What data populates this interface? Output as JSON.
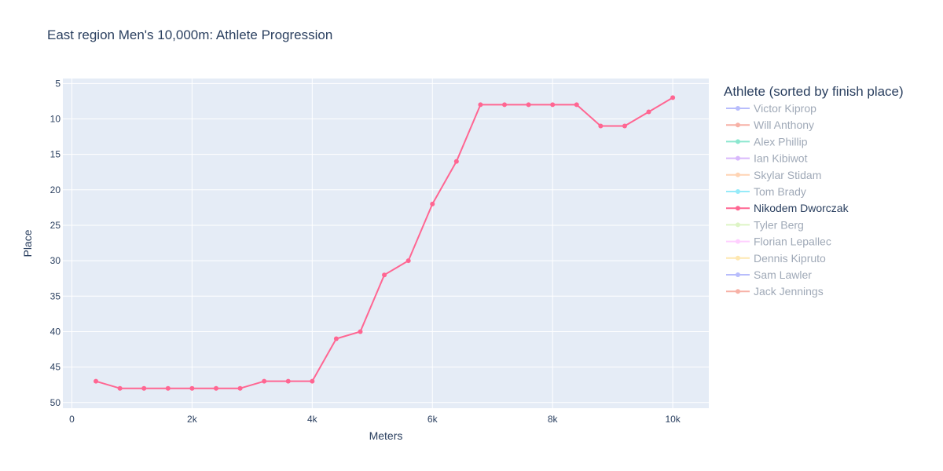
{
  "chart_data": {
    "type": "line",
    "title": "East region Men's 10,000m: Athlete Progression",
    "xlabel": "Meters",
    "ylabel": "Place",
    "xlim": [
      -150,
      10600
    ],
    "ylim": [
      4.3,
      50.8
    ],
    "y_reversed": true,
    "x_ticks": [
      {
        "value": 0,
        "label": "0"
      },
      {
        "value": 2000,
        "label": "2k"
      },
      {
        "value": 4000,
        "label": "4k"
      },
      {
        "value": 6000,
        "label": "6k"
      },
      {
        "value": 8000,
        "label": "8k"
      },
      {
        "value": 10000,
        "label": "10k"
      }
    ],
    "y_ticks": [
      {
        "value": 5,
        "label": "5"
      },
      {
        "value": 10,
        "label": "10"
      },
      {
        "value": 15,
        "label": "15"
      },
      {
        "value": 20,
        "label": "20"
      },
      {
        "value": 25,
        "label": "25"
      },
      {
        "value": 30,
        "label": "30"
      },
      {
        "value": 35,
        "label": "35"
      },
      {
        "value": 40,
        "label": "40"
      },
      {
        "value": 45,
        "label": "45"
      },
      {
        "value": 50,
        "label": "50"
      }
    ],
    "grid": true,
    "plot_background": "#e5ecf6",
    "legend": {
      "title": "Athlete (sorted by finish place)",
      "placement": "right"
    },
    "series": [
      {
        "name": "Victor Kiprop",
        "color": "#636efa",
        "highlighted": false,
        "x": [],
        "y": []
      },
      {
        "name": "Will Anthony",
        "color": "#ef553b",
        "highlighted": false,
        "x": [],
        "y": []
      },
      {
        "name": "Alex Phillip",
        "color": "#00cc96",
        "highlighted": false,
        "x": [],
        "y": []
      },
      {
        "name": "Ian Kibiwot",
        "color": "#ab63fa",
        "highlighted": false,
        "x": [],
        "y": []
      },
      {
        "name": "Skylar Stidam",
        "color": "#ffa15a",
        "highlighted": false,
        "x": [],
        "y": []
      },
      {
        "name": "Tom Brady",
        "color": "#19d3f3",
        "highlighted": false,
        "x": [],
        "y": []
      },
      {
        "name": "Nikodem Dworczak",
        "color": "#ff6692",
        "highlighted": true,
        "x": [
          400,
          800,
          1200,
          1600,
          2000,
          2400,
          2800,
          3200,
          3600,
          4000,
          4400,
          4800,
          5200,
          5600,
          6000,
          6400,
          6800,
          7200,
          7600,
          8000,
          8400,
          8800,
          9200,
          9600,
          10000
        ],
        "y": [
          47,
          48,
          48,
          48,
          48,
          48,
          48,
          47,
          47,
          47,
          41,
          40,
          32,
          30,
          22,
          16,
          8,
          8,
          8,
          8,
          8,
          11,
          11,
          9,
          7
        ]
      },
      {
        "name": "Tyler Berg",
        "color": "#b6e880",
        "highlighted": false,
        "x": [],
        "y": []
      },
      {
        "name": "Florian Lepallec",
        "color": "#ff97ff",
        "highlighted": false,
        "x": [],
        "y": []
      },
      {
        "name": "Dennis Kipruto",
        "color": "#fecb52",
        "highlighted": false,
        "x": [],
        "y": []
      },
      {
        "name": "Sam Lawler",
        "color": "#636efa",
        "highlighted": false,
        "x": [],
        "y": []
      },
      {
        "name": "Jack Jennings",
        "color": "#ef553b",
        "highlighted": false,
        "x": [],
        "y": []
      }
    ]
  }
}
